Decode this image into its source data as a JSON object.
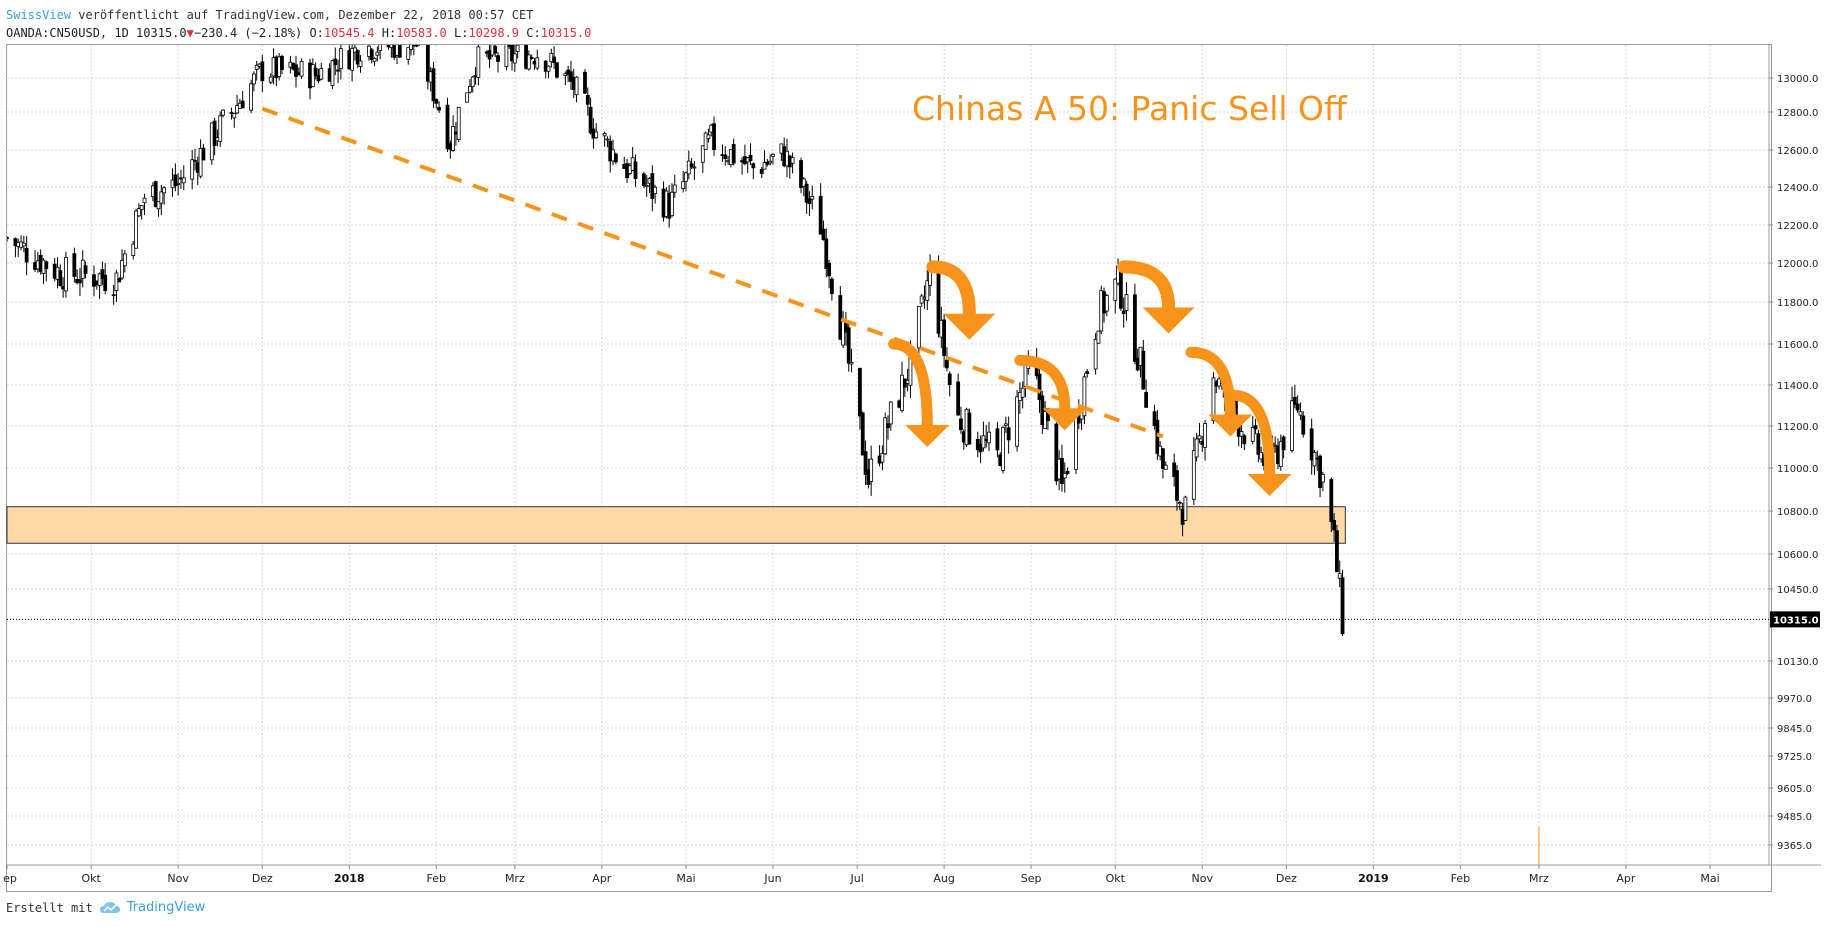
{
  "header": {
    "publisher": "SwissView",
    "published_text": " veröffentlicht auf TradingView.com, Dezember 22, 2018 00:57 CET",
    "symbol": "OANDA:CN50USD, 1D 10315.0",
    "change": "−230.4 (−2.18%)",
    "o_label": " O:",
    "o_value": "10545.4",
    "h_label": " H:",
    "h_value": "10583.0",
    "l_label": " L:",
    "l_value": "10298.9",
    "c_label": " C:",
    "c_value": "10315.0"
  },
  "footer": {
    "created_with": "Erstellt mit",
    "brand": "TradingView"
  },
  "colors": {
    "orange": "#f7931a",
    "zone_fill": "#fdd9a6",
    "candle": "#000000",
    "grid": "#d6d6d6"
  },
  "chart_data": {
    "type": "candlestick",
    "title": "Chinas A 50: Panic Sell Off",
    "instrument": "OANDA:CN50USD",
    "interval": "1D",
    "y_ticks": [
      13000.0,
      12800.0,
      12600.0,
      12400.0,
      12200.0,
      12000.0,
      11800.0,
      11600.0,
      11400.0,
      11200.0,
      11000.0,
      10800.0,
      10600.0,
      10450.0,
      10130.0,
      9970.0,
      9845.0,
      9725.0,
      9605.0,
      9485.0,
      9365.0
    ],
    "x_labels": [
      "ep",
      "Okt",
      "Nov",
      "Dez",
      "2018",
      "Feb",
      "Mrz",
      "Apr",
      "Mai",
      "Jun",
      "Jul",
      "Aug",
      "Sep",
      "Okt",
      "Nov",
      "Dez",
      "2019",
      "Feb",
      "Mrz",
      "Apr",
      "Mai"
    ],
    "last_price": "10315.0",
    "support_zone": [
      10650,
      10820
    ],
    "trendline": {
      "from": [
        "2017-12-01",
        12820
      ],
      "to": [
        "2018-10-18",
        11150
      ]
    },
    "close_series": [
      [
        "2017-09-01",
        12130
      ],
      [
        "2017-09-20",
        11950
      ],
      [
        "2017-10-10",
        11920
      ],
      [
        "2017-10-20",
        12350
      ],
      [
        "2017-11-01",
        12420
      ],
      [
        "2017-11-20",
        12800
      ],
      [
        "2017-12-01",
        13050
      ],
      [
        "2017-12-20",
        13020
      ],
      [
        "2018-01-05",
        13180
      ],
      [
        "2018-01-25",
        13200
      ],
      [
        "2018-02-06",
        12650
      ],
      [
        "2018-02-15",
        13100
      ],
      [
        "2018-03-10",
        13150
      ],
      [
        "2018-03-22",
        12950
      ],
      [
        "2018-03-30",
        12700
      ],
      [
        "2018-04-10",
        12500
      ],
      [
        "2018-04-25",
        12300
      ],
      [
        "2018-05-10",
        12650
      ],
      [
        "2018-05-25",
        12500
      ],
      [
        "2018-06-05",
        12580
      ],
      [
        "2018-06-18",
        12200
      ],
      [
        "2018-06-28",
        11500
      ],
      [
        "2018-07-05",
        10950
      ],
      [
        "2018-07-20",
        11500
      ],
      [
        "2018-07-27",
        11950
      ],
      [
        "2018-08-05",
        11250
      ],
      [
        "2018-08-20",
        11050
      ],
      [
        "2018-09-01",
        11500
      ],
      [
        "2018-09-12",
        10900
      ],
      [
        "2018-09-25",
        11750
      ],
      [
        "2018-10-02",
        11900
      ],
      [
        "2018-10-10",
        11500
      ],
      [
        "2018-10-18",
        11000
      ],
      [
        "2018-10-26",
        10800
      ],
      [
        "2018-11-05",
        11450
      ],
      [
        "2018-11-15",
        11200
      ],
      [
        "2018-11-25",
        11000
      ],
      [
        "2018-12-05",
        11300
      ],
      [
        "2018-12-14",
        10950
      ],
      [
        "2018-12-18",
        10650
      ],
      [
        "2018-12-21",
        10315
      ]
    ]
  }
}
